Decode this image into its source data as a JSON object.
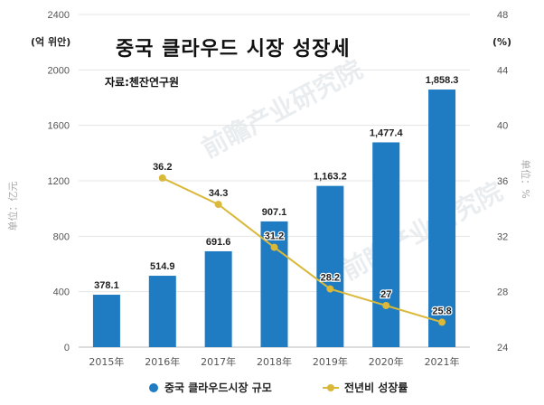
{
  "texts": {
    "title": "중국 클라우드 시장 성장세",
    "left_unit": "(억 위안)",
    "right_unit": "(%)",
    "source": "자료:첸잔연구원",
    "left_axis_label": "单位：亿元",
    "right_axis_label": "单位：%",
    "watermark": "前瞻产业研究院"
  },
  "colors": {
    "bar": "#1f7bc2",
    "line": "#d9b83a",
    "grid": "#e4e4e4",
    "axis_text": "#555555",
    "label_text": "#222222"
  },
  "chart_data": {
    "type": "bar",
    "categories": [
      "2015年",
      "2016年",
      "2017年",
      "2018年",
      "2019年",
      "2020年",
      "2021年"
    ],
    "series": [
      {
        "name": "중국 클라우드시장 규모",
        "type": "bar",
        "axis": "left",
        "values": [
          378.1,
          514.9,
          691.6,
          907.1,
          1163.2,
          1477.4,
          1858.3
        ],
        "labels": [
          "378.1",
          "514.9",
          "691.6",
          "907.1",
          "1,163.2",
          "1,477.4",
          "1,858.3"
        ]
      },
      {
        "name": "전년비 성장률",
        "type": "line",
        "axis": "right",
        "values": [
          null,
          36.2,
          34.3,
          31.2,
          28.2,
          27,
          25.8
        ],
        "labels": [
          "",
          "36.2",
          "34.3",
          "31.2",
          "28.2",
          "27",
          "25.8"
        ]
      }
    ],
    "y_left": {
      "min": 0,
      "max": 2400,
      "ticks": [
        0,
        400,
        800,
        1200,
        1600,
        2000,
        2400
      ]
    },
    "y_right": {
      "min": 24,
      "max": 48,
      "ticks": [
        24,
        28,
        32,
        36,
        40,
        44,
        48
      ]
    },
    "grid": true,
    "legend_position": "bottom"
  }
}
